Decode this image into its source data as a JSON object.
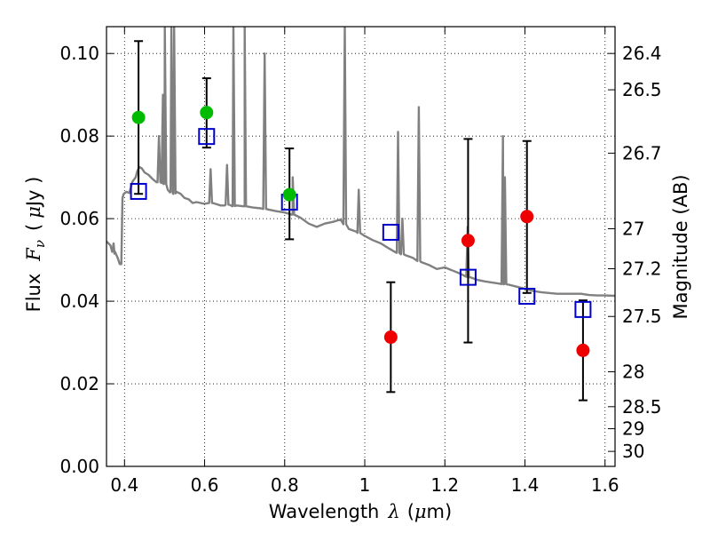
{
  "chart_data": {
    "type": "scatter",
    "title": "",
    "xlabel": {
      "prefix": "Wavelength",
      "symbol": "λ",
      "unit_open": "(",
      "unit_mu": "μ",
      "unit_rest": "m)"
    },
    "ylabel": {
      "prefix": "Flux",
      "symbol": "F",
      "sub": "ν",
      "unit_open": "(",
      "unit_mu": "μ",
      "unit_rest": "Jy )"
    },
    "y2label": "Magnitude (AB)",
    "xlim": [
      0.355,
      1.625
    ],
    "ylim": [
      0.0,
      0.1065
    ],
    "grid": true,
    "x_ticks": [
      {
        "v": 0.4,
        "label": "0.4"
      },
      {
        "v": 0.6,
        "label": "0.6"
      },
      {
        "v": 0.8,
        "label": "0.8"
      },
      {
        "v": 1.0,
        "label": "1"
      },
      {
        "v": 1.2,
        "label": "1.2"
      },
      {
        "v": 1.4,
        "label": "1.4"
      },
      {
        "v": 1.6,
        "label": "1.6"
      }
    ],
    "y_ticks": [
      {
        "v": 0.0,
        "label": "0.00"
      },
      {
        "v": 0.02,
        "label": "0.02"
      },
      {
        "v": 0.04,
        "label": "0.04"
      },
      {
        "v": 0.06,
        "label": "0.06"
      },
      {
        "v": 0.08,
        "label": "0.08"
      },
      {
        "v": 0.1,
        "label": "0.10"
      }
    ],
    "y2_ticks": [
      {
        "mag": 26.4,
        "label": "26.4"
      },
      {
        "mag": 26.5,
        "label": "26.5"
      },
      {
        "mag": 26.7,
        "label": "26.7"
      },
      {
        "mag": 27.0,
        "label": "27"
      },
      {
        "mag": 27.2,
        "label": "27.2"
      },
      {
        "mag": 27.5,
        "label": "27.5"
      },
      {
        "mag": 28.0,
        "label": "28"
      },
      {
        "mag": 28.5,
        "label": "28.5"
      },
      {
        "mag": 29.0,
        "label": "29"
      },
      {
        "mag": 30.0,
        "label": "30"
      }
    ],
    "colors": {
      "spectrum": "#808080",
      "model": "#0000cc",
      "green": "#00bb00",
      "red": "#ee0000",
      "error": "#000000"
    },
    "spectrum": [
      [
        0.355,
        0.0545
      ],
      [
        0.365,
        0.0535
      ],
      [
        0.375,
        0.0515
      ],
      [
        0.383,
        0.0505
      ],
      [
        0.388,
        0.049
      ],
      [
        0.392,
        0.049
      ],
      [
        0.395,
        0.065
      ],
      [
        0.398,
        0.066
      ],
      [
        0.405,
        0.0665
      ],
      [
        0.412,
        0.0662
      ],
      [
        0.42,
        0.069
      ],
      [
        0.428,
        0.07
      ],
      [
        0.432,
        0.0715
      ],
      [
        0.437,
        0.0725
      ],
      [
        0.443,
        0.0722
      ],
      [
        0.45,
        0.0712
      ],
      [
        0.46,
        0.0706
      ],
      [
        0.47,
        0.0696
      ],
      [
        0.48,
        0.0688
      ],
      [
        0.49,
        0.0688
      ],
      [
        0.5,
        0.0685
      ],
      [
        0.508,
        0.067
      ],
      [
        0.515,
        0.0665
      ],
      [
        0.522,
        0.066
      ],
      [
        0.53,
        0.0665
      ],
      [
        0.54,
        0.066
      ],
      [
        0.55,
        0.065
      ],
      [
        0.56,
        0.0647
      ],
      [
        0.57,
        0.0638
      ],
      [
        0.58,
        0.064
      ],
      [
        0.59,
        0.0638
      ],
      [
        0.6,
        0.0636
      ],
      [
        0.61,
        0.0638
      ],
      [
        0.62,
        0.0638
      ],
      [
        0.63,
        0.0635
      ],
      [
        0.64,
        0.0632
      ],
      [
        0.65,
        0.0632
      ],
      [
        0.66,
        0.0635
      ],
      [
        0.67,
        0.063
      ],
      [
        0.68,
        0.0632
      ],
      [
        0.7,
        0.063
      ],
      [
        0.72,
        0.0627
      ],
      [
        0.74,
        0.0625
      ],
      [
        0.76,
        0.0622
      ],
      [
        0.78,
        0.0618
      ],
      [
        0.8,
        0.0615
      ],
      [
        0.82,
        0.061
      ],
      [
        0.84,
        0.0602
      ],
      [
        0.86,
        0.0588
      ],
      [
        0.88,
        0.058
      ],
      [
        0.9,
        0.0588
      ],
      [
        0.92,
        0.0592
      ],
      [
        0.94,
        0.0598
      ],
      [
        0.96,
        0.0575
      ],
      [
        0.98,
        0.0568
      ],
      [
        1.0,
        0.0558
      ],
      [
        1.02,
        0.0548
      ],
      [
        1.04,
        0.054
      ],
      [
        1.06,
        0.0528
      ],
      [
        1.08,
        0.0518
      ],
      [
        1.1,
        0.0512
      ],
      [
        1.12,
        0.0505
      ],
      [
        1.14,
        0.0495
      ],
      [
        1.16,
        0.0488
      ],
      [
        1.18,
        0.0478
      ],
      [
        1.2,
        0.0482
      ],
      [
        1.22,
        0.0474
      ],
      [
        1.24,
        0.0466
      ],
      [
        1.26,
        0.0458
      ],
      [
        1.28,
        0.0452
      ],
      [
        1.3,
        0.0448
      ],
      [
        1.32,
        0.0445
      ],
      [
        1.34,
        0.0442
      ],
      [
        1.36,
        0.044
      ],
      [
        1.38,
        0.0435
      ],
      [
        1.4,
        0.043
      ],
      [
        1.42,
        0.0425
      ],
      [
        1.44,
        0.0422
      ],
      [
        1.46,
        0.042
      ],
      [
        1.48,
        0.0418
      ],
      [
        1.5,
        0.0418
      ],
      [
        1.52,
        0.0418
      ],
      [
        1.54,
        0.0418
      ],
      [
        1.56,
        0.0415
      ],
      [
        1.58,
        0.0414
      ],
      [
        1.6,
        0.0414
      ],
      [
        1.625,
        0.0413
      ]
    ],
    "emission_lines": [
      [
        0.3727,
        0.054
      ],
      [
        0.486,
        0.08
      ],
      [
        0.4959,
        0.09
      ],
      [
        0.5007,
        0.12
      ],
      [
        0.517,
        0.12
      ],
      [
        0.524,
        0.12
      ],
      [
        0.615,
        0.072
      ],
      [
        0.656,
        0.073
      ],
      [
        0.672,
        0.122
      ],
      [
        0.7,
        0.12
      ],
      [
        0.75,
        0.1
      ],
      [
        0.82,
        0.07
      ],
      [
        0.95,
        0.12
      ],
      [
        0.985,
        0.067
      ],
      [
        1.083,
        0.081
      ],
      [
        1.094,
        0.06
      ],
      [
        1.135,
        0.087
      ],
      [
        1.257,
        0.058
      ],
      [
        1.345,
        0.08
      ],
      [
        1.35,
        0.07
      ]
    ],
    "model_points": [
      {
        "x": 0.435,
        "y": 0.0666
      },
      {
        "x": 0.605,
        "y": 0.0799
      },
      {
        "x": 0.812,
        "y": 0.064
      },
      {
        "x": 1.065,
        "y": 0.0567
      },
      {
        "x": 1.258,
        "y": 0.0458
      },
      {
        "x": 1.405,
        "y": 0.0412
      },
      {
        "x": 1.545,
        "y": 0.038
      }
    ],
    "detections": [
      {
        "x": 0.435,
        "y": 0.0845,
        "yerr_lo": 0.0185,
        "yerr_hi": 0.0185
      },
      {
        "x": 0.605,
        "y": 0.0857,
        "yerr_lo": 0.0085,
        "yerr_hi": 0.0083
      },
      {
        "x": 0.812,
        "y": 0.0658,
        "yerr_lo": 0.0108,
        "yerr_hi": 0.0112
      }
    ],
    "non_detections": [
      {
        "x": 1.065,
        "y": 0.0313,
        "yerr_lo": 0.0133,
        "yerr_hi": 0.0133
      },
      {
        "x": 1.258,
        "y": 0.0547,
        "yerr_lo": 0.0247,
        "yerr_hi": 0.0246
      },
      {
        "x": 1.405,
        "y": 0.0605,
        "yerr_lo": 0.0185,
        "yerr_hi": 0.0183
      },
      {
        "x": 1.545,
        "y": 0.0281,
        "yerr_lo": 0.0121,
        "yerr_hi": 0.0121
      }
    ]
  }
}
